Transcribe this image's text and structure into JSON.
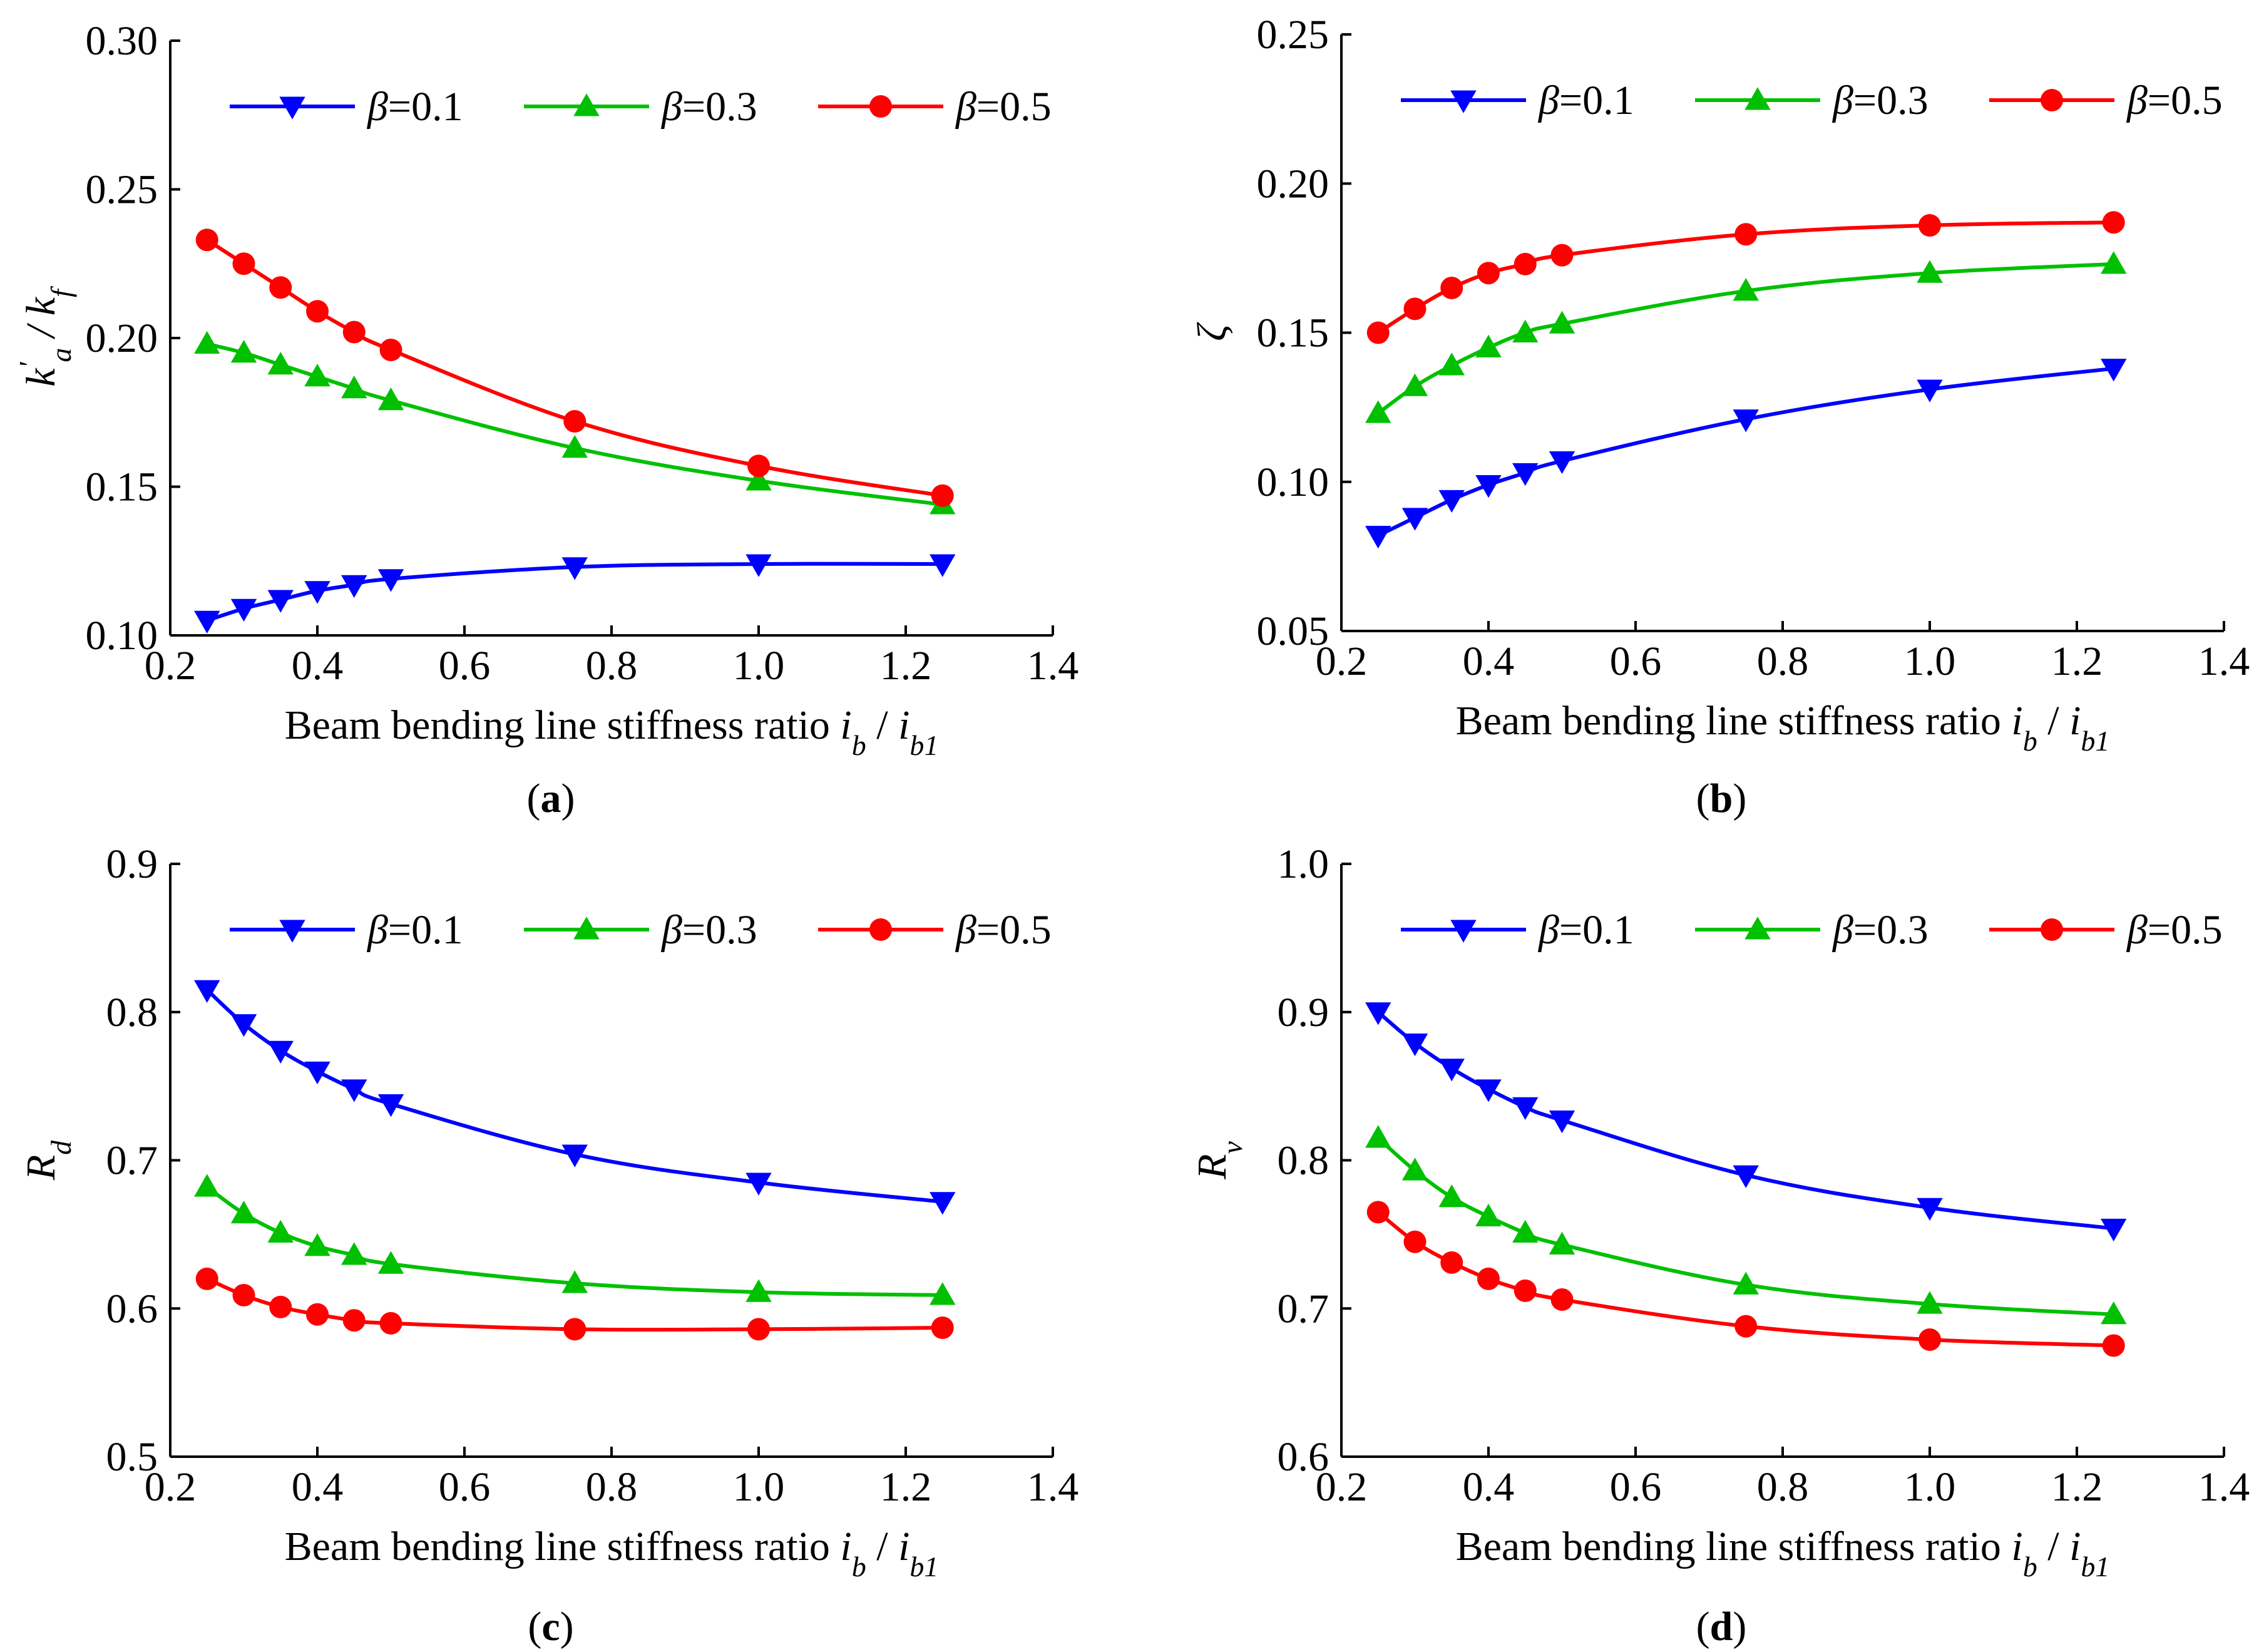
{
  "figure": {
    "panel_labels": [
      "(a)",
      "(b)",
      "(c)",
      "(d)"
    ]
  },
  "chart_data": [
    {
      "type": "line",
      "panel": "(a)",
      "xlabel": "Beam bending line stiffness ratio",
      "xlabel_math": "i_b / i_b1",
      "ylabel": "k'_a / k_f",
      "xlim": [
        0.2,
        1.4
      ],
      "ylim": [
        0.1,
        0.3
      ],
      "xticks": [
        "0.2",
        "0.4",
        "0.6",
        "0.8",
        "1.0",
        "1.2",
        "1.4"
      ],
      "yticks": [
        "0.10",
        "0.15",
        "0.20",
        "0.25",
        "0.30"
      ],
      "legend_position": "top",
      "x": [
        0.25,
        0.3,
        0.35,
        0.4,
        0.45,
        0.5,
        0.75,
        1.0,
        1.25
      ],
      "series": [
        {
          "name": "β=0.1",
          "color": "#0000ff",
          "marker": "triangle-down",
          "values": [
            0.105,
            0.109,
            0.112,
            0.115,
            0.117,
            0.119,
            0.123,
            0.124,
            0.124
          ]
        },
        {
          "name": "β=0.3",
          "color": "#00c000",
          "marker": "triangle-up",
          "values": [
            0.198,
            0.195,
            0.191,
            0.187,
            0.183,
            0.179,
            0.163,
            0.152,
            0.144
          ]
        },
        {
          "name": "β=0.5",
          "color": "#ff0000",
          "marker": "circle",
          "values": [
            0.233,
            0.225,
            0.217,
            0.209,
            0.202,
            0.196,
            0.172,
            0.157,
            0.147
          ]
        }
      ]
    },
    {
      "type": "line",
      "panel": "(b)",
      "xlabel": "Beam bending line stiffness ratio",
      "xlabel_math": "i_b / i_b1",
      "ylabel": "ζ",
      "xlim": [
        0.2,
        1.4
      ],
      "ylim": [
        0.05,
        0.25
      ],
      "xticks": [
        "0.2",
        "0.4",
        "0.6",
        "0.8",
        "1.0",
        "1.2",
        "1.4"
      ],
      "yticks": [
        "0.05",
        "0.10",
        "0.15",
        "0.20",
        "0.25"
      ],
      "legend_position": "top",
      "x": [
        0.25,
        0.3,
        0.35,
        0.4,
        0.45,
        0.5,
        0.75,
        1.0,
        1.25
      ],
      "series": [
        {
          "name": "β=0.1",
          "color": "#0000ff",
          "marker": "triangle-down",
          "values": [
            0.082,
            0.088,
            0.094,
            0.099,
            0.103,
            0.107,
            0.121,
            0.131,
            0.138
          ]
        },
        {
          "name": "β=0.3",
          "color": "#00c000",
          "marker": "triangle-up",
          "values": [
            0.123,
            0.132,
            0.139,
            0.145,
            0.15,
            0.153,
            0.164,
            0.17,
            0.173
          ]
        },
        {
          "name": "β=0.5",
          "color": "#ff0000",
          "marker": "circle",
          "values": [
            0.15,
            0.158,
            0.165,
            0.17,
            0.173,
            0.176,
            0.183,
            0.186,
            0.187
          ]
        }
      ]
    },
    {
      "type": "line",
      "panel": "(c)",
      "xlabel": "Beam bending line stiffness ratio",
      "xlabel_math": "i_b / i_b1",
      "ylabel": "R_d",
      "xlim": [
        0.2,
        1.4
      ],
      "ylim": [
        0.5,
        0.9
      ],
      "xticks": [
        "0.2",
        "0.4",
        "0.6",
        "0.8",
        "1.0",
        "1.2",
        "1.4"
      ],
      "yticks": [
        "0.5",
        "0.6",
        "0.7",
        "0.8",
        "0.9"
      ],
      "legend_position": "top",
      "x": [
        0.25,
        0.3,
        0.35,
        0.4,
        0.45,
        0.5,
        0.75,
        1.0,
        1.25
      ],
      "series": [
        {
          "name": "β=0.1",
          "color": "#0000ff",
          "marker": "triangle-down",
          "values": [
            0.815,
            0.792,
            0.774,
            0.76,
            0.748,
            0.738,
            0.704,
            0.685,
            0.672
          ]
        },
        {
          "name": "β=0.3",
          "color": "#00c000",
          "marker": "triangle-up",
          "values": [
            0.682,
            0.664,
            0.651,
            0.642,
            0.636,
            0.63,
            0.617,
            0.611,
            0.609
          ]
        },
        {
          "name": "β=0.5",
          "color": "#ff0000",
          "marker": "circle",
          "values": [
            0.62,
            0.609,
            0.601,
            0.596,
            0.592,
            0.59,
            0.586,
            0.586,
            0.587
          ]
        }
      ]
    },
    {
      "type": "line",
      "panel": "(d)",
      "xlabel": "Beam bending line stiffness ratio",
      "xlabel_math": "i_b / i_b1",
      "ylabel": "R_v",
      "xlim": [
        0.2,
        1.4
      ],
      "ylim": [
        0.6,
        1.0
      ],
      "xticks": [
        "0.2",
        "0.4",
        "0.6",
        "0.8",
        "1.0",
        "1.2",
        "1.4"
      ],
      "yticks": [
        "0.6",
        "0.7",
        "0.8",
        "0.9",
        "1.0"
      ],
      "legend_position": "top",
      "x": [
        0.25,
        0.3,
        0.35,
        0.4,
        0.45,
        0.5,
        0.75,
        1.0,
        1.25
      ],
      "series": [
        {
          "name": "β=0.1",
          "color": "#0000ff",
          "marker": "triangle-down",
          "values": [
            0.9,
            0.879,
            0.862,
            0.848,
            0.836,
            0.827,
            0.79,
            0.768,
            0.754
          ]
        },
        {
          "name": "β=0.3",
          "color": "#00c000",
          "marker": "triangle-up",
          "values": [
            0.815,
            0.793,
            0.775,
            0.762,
            0.751,
            0.743,
            0.716,
            0.703,
            0.696
          ]
        },
        {
          "name": "β=0.5",
          "color": "#ff0000",
          "marker": "circle",
          "values": [
            0.765,
            0.745,
            0.731,
            0.72,
            0.712,
            0.706,
            0.688,
            0.679,
            0.675
          ]
        }
      ]
    }
  ]
}
